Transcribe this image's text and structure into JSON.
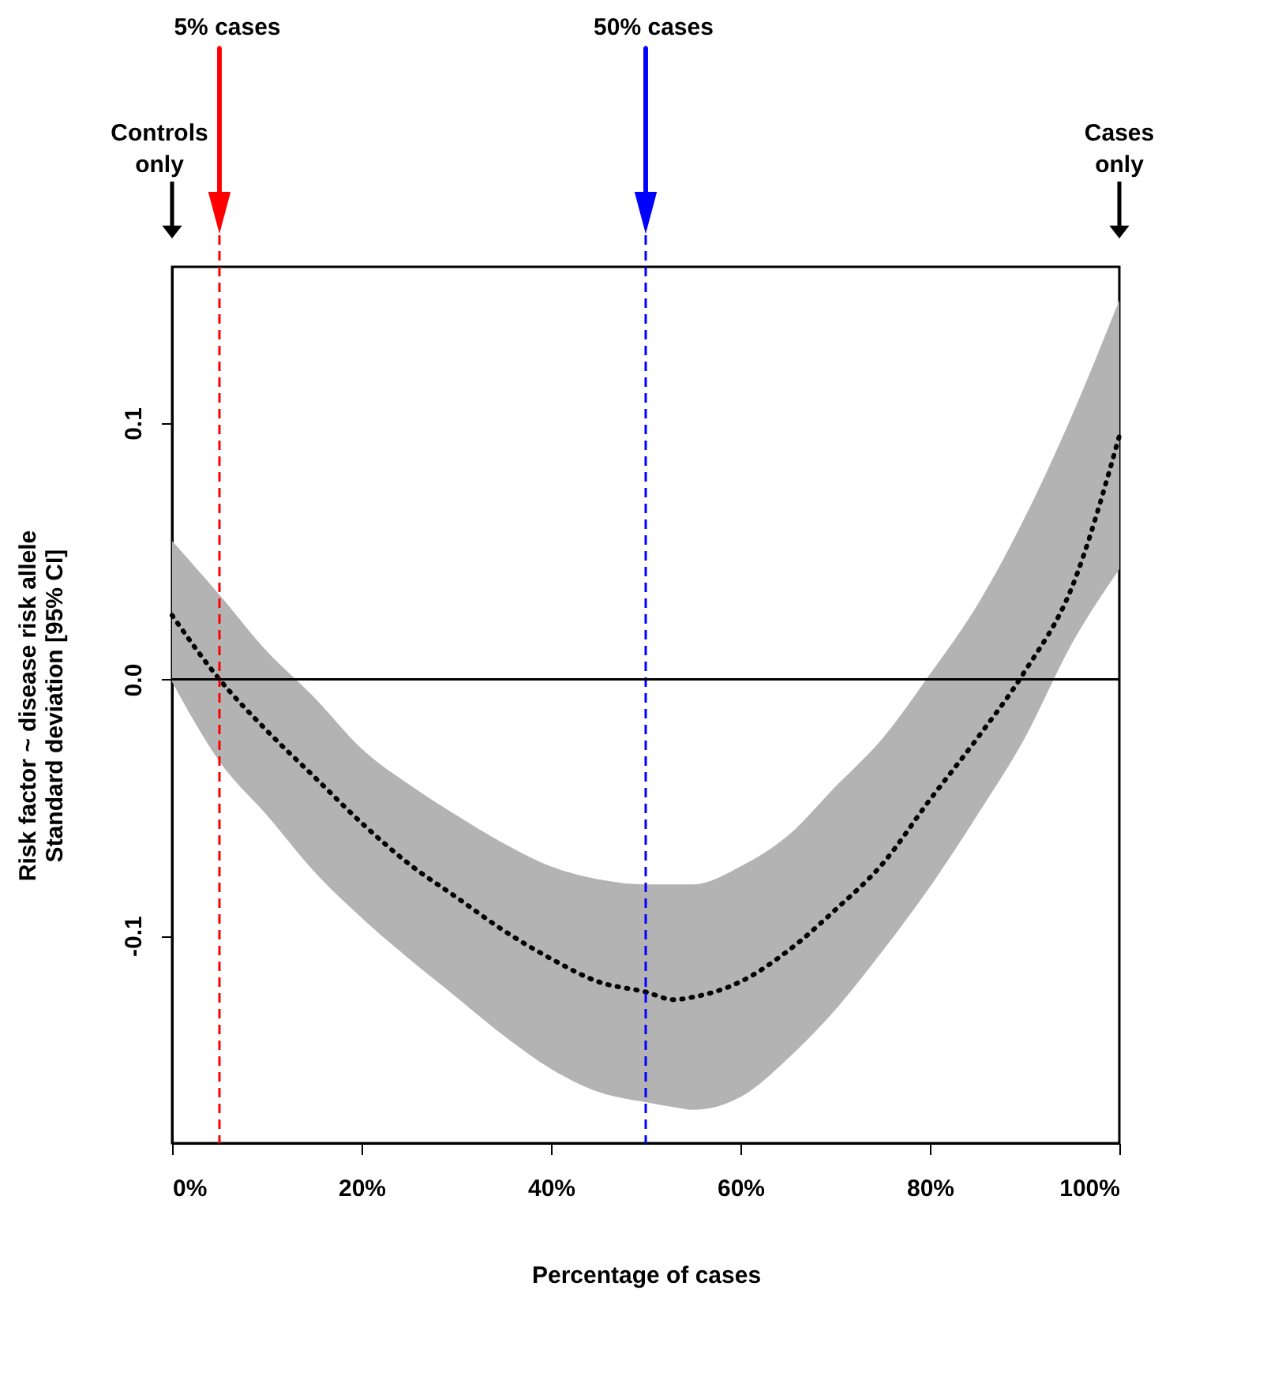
{
  "chart_data": {
    "type": "line",
    "xlabel": "Percentage of cases",
    "ylabel": "Risk factor ~ disease risk allele\nStandard deviation [95% CI]",
    "x": [
      0,
      5,
      10,
      15,
      20,
      25,
      30,
      35,
      40,
      45,
      50,
      53,
      55,
      60,
      65,
      70,
      75,
      80,
      85,
      90,
      95,
      100
    ],
    "series": [
      {
        "color": "#000000",
        "line_style": "dotted",
        "values": [
          0.025,
          0.0,
          -0.02,
          -0.038,
          -0.056,
          -0.072,
          -0.085,
          -0.098,
          -0.109,
          -0.118,
          -0.122,
          -0.125,
          -0.124,
          -0.118,
          -0.106,
          -0.09,
          -0.072,
          -0.047,
          -0.023,
          0.003,
          0.036,
          0.095
        ],
        "upper": [
          0.054,
          0.033,
          0.011,
          -0.007,
          -0.027,
          -0.041,
          -0.053,
          -0.064,
          -0.073,
          -0.078,
          -0.08,
          -0.08,
          -0.08,
          -0.073,
          -0.061,
          -0.042,
          -0.023,
          0.002,
          0.029,
          0.063,
          0.103,
          0.148
        ],
        "lower": [
          -0.001,
          -0.032,
          -0.053,
          -0.075,
          -0.093,
          -0.109,
          -0.124,
          -0.139,
          -0.152,
          -0.161,
          -0.165,
          -0.167,
          -0.168,
          -0.163,
          -0.148,
          -0.129,
          -0.106,
          -0.081,
          -0.053,
          -0.023,
          0.014,
          0.043
        ]
      }
    ],
    "xlim": [
      0,
      100
    ],
    "xticks": [
      {
        "value": 0,
        "label": "0%"
      },
      {
        "value": 20,
        "label": "20%"
      },
      {
        "value": 40,
        "label": "40%"
      },
      {
        "value": 60,
        "label": "60%"
      },
      {
        "value": 80,
        "label": "80%"
      },
      {
        "value": 100,
        "label": "100%"
      }
    ],
    "ylim": [
      -0.181,
      0.161
    ],
    "yticks": [
      -0.1,
      {
        "value": 0,
        "label": "0.0"
      },
      0.1
    ],
    "ref_lines": [
      {
        "axis": "x",
        "value": 5,
        "label": "5% cases",
        "color": "#ff0000",
        "line_style": "dashed"
      },
      {
        "axis": "x",
        "value": 50,
        "label": "50% cases",
        "color": "#0000ff",
        "line_style": "dashed"
      },
      {
        "axis": "y",
        "value": 0,
        "color": "#000000",
        "line_style": "solid"
      }
    ],
    "annotations": [
      "Controls\nonly",
      "Cases\nonly"
    ],
    "grid": false
  }
}
